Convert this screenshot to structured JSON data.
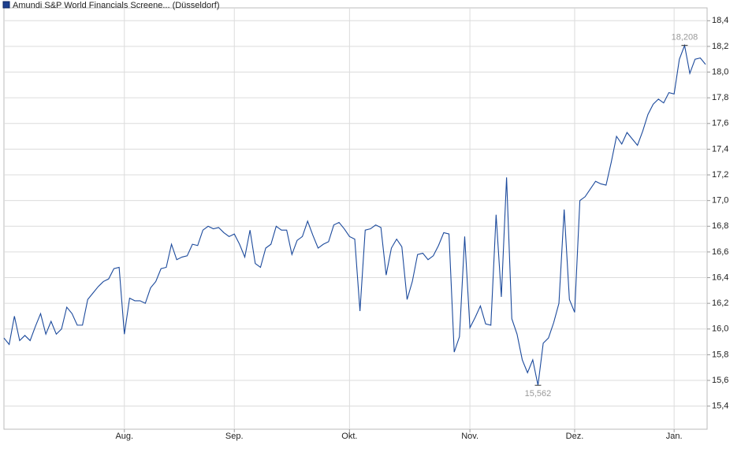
{
  "chart_data": {
    "type": "line",
    "series": [
      {
        "name": "Amundi S&P World Financials Screene... (Düsseldorf)",
        "color": "#1c4a9c",
        "values": [
          15.93,
          15.88,
          16.1,
          15.91,
          15.95,
          15.91,
          16.02,
          16.12,
          15.96,
          16.06,
          15.96,
          16.0,
          16.17,
          16.12,
          16.03,
          16.03,
          16.23,
          16.28,
          16.33,
          16.37,
          16.39,
          16.47,
          16.48,
          15.96,
          16.24,
          16.22,
          16.22,
          16.2,
          16.32,
          16.37,
          16.47,
          16.48,
          16.66,
          16.54,
          16.56,
          16.57,
          16.66,
          16.65,
          16.77,
          16.8,
          16.78,
          16.79,
          16.75,
          16.72,
          16.74,
          16.66,
          16.56,
          16.77,
          16.51,
          16.48,
          16.63,
          16.66,
          16.8,
          16.77,
          16.77,
          16.58,
          16.69,
          16.72,
          16.84,
          16.73,
          16.63,
          16.66,
          16.68,
          16.81,
          16.83,
          16.78,
          16.72,
          16.7,
          16.14,
          16.77,
          16.78,
          16.81,
          16.79,
          16.42,
          16.63,
          16.7,
          16.64,
          16.23,
          16.37,
          16.58,
          16.59,
          16.54,
          16.57,
          16.65,
          16.75,
          16.74,
          15.82,
          15.94,
          16.72,
          16.01,
          16.09,
          16.18,
          16.04,
          16.03,
          16.89,
          16.25,
          17.18,
          16.08,
          15.96,
          15.76,
          15.66,
          15.76,
          15.562,
          15.89,
          15.93,
          16.05,
          16.2,
          16.93,
          16.23,
          16.13,
          17.0,
          17.03,
          17.09,
          17.15,
          17.13,
          17.12,
          17.3,
          17.5,
          17.44,
          17.53,
          17.48,
          17.43,
          17.54,
          17.67,
          17.75,
          17.79,
          17.76,
          17.84,
          17.83,
          18.1,
          18.208,
          17.99,
          18.1,
          18.11,
          18.06
        ]
      }
    ],
    "xlim": [
      0,
      134.3
    ],
    "xticks": [
      {
        "value": 23,
        "label": "Aug."
      },
      {
        "value": 44,
        "label": "Sep."
      },
      {
        "value": 66,
        "label": "Okt."
      },
      {
        "value": 89,
        "label": "Nov."
      },
      {
        "value": 109,
        "label": "Dez."
      },
      {
        "value": 128,
        "label": "Jan."
      }
    ],
    "ylim": [
      15.22,
      18.5
    ],
    "yticks": [
      {
        "value": 15.4,
        "label": "15,4"
      },
      {
        "value": 15.6,
        "label": "15,6"
      },
      {
        "value": 15.8,
        "label": "15,8"
      },
      {
        "value": 16.0,
        "label": "16,0"
      },
      {
        "value": 16.2,
        "label": "16,2"
      },
      {
        "value": 16.4,
        "label": "16,4"
      },
      {
        "value": 16.6,
        "label": "16,6"
      },
      {
        "value": 16.8,
        "label": "16,8"
      },
      {
        "value": 17.0,
        "label": "17,0"
      },
      {
        "value": 17.2,
        "label": "17,2"
      },
      {
        "value": 17.4,
        "label": "17,4"
      },
      {
        "value": 17.6,
        "label": "17,6"
      },
      {
        "value": 17.8,
        "label": "17,8"
      },
      {
        "value": 18.0,
        "label": "18,0"
      },
      {
        "value": 18.2,
        "label": "18,2"
      },
      {
        "value": 18.4,
        "label": "18,4"
      }
    ],
    "grid": true,
    "annotations": [
      {
        "text": "18,208",
        "x": 130,
        "y": 18.208
      },
      {
        "text": "15,562",
        "x": 102,
        "y": 15.562
      }
    ]
  }
}
